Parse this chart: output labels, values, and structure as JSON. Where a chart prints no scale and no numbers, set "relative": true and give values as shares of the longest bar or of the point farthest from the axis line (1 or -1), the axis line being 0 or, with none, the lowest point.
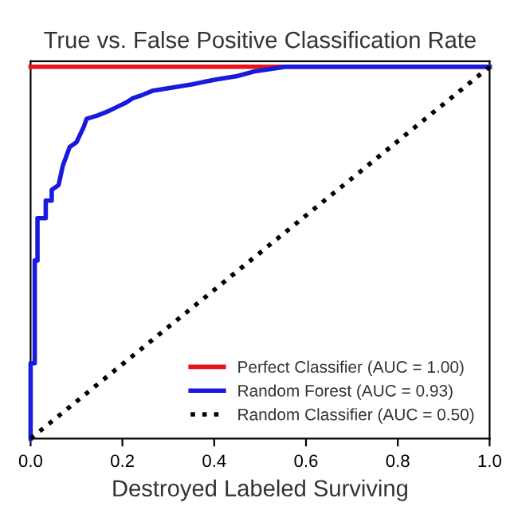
{
  "chart_data": {
    "type": "line",
    "title": "True vs. False Positive Classification Rate",
    "xlabel": "Destroyed Labeled Surviving",
    "xlim": [
      0,
      1
    ],
    "relative": true,
    "xticks": [
      {
        "value": 0,
        "label": "0.0"
      },
      0.2,
      0.4,
      0.6,
      0.8,
      {
        "value": 1,
        "label": "1.0"
      }
    ],
    "tick_labels": "x",
    "grid": false,
    "legend": "bottom right",
    "series": [
      {
        "name": "Perfect Classifier (AUC = 1.00)",
        "color": "#e8141c",
        "x": [
          0,
          1
        ],
        "values": [
          1,
          1
        ]
      },
      {
        "name": "Random Forest (AUC = 0.93)",
        "color": "#1a1adc",
        "x": [
          0,
          0,
          0.009,
          0.009,
          0.015,
          0.015,
          0.033,
          0.033,
          0.046,
          0.046,
          0.061,
          0.07,
          0.085,
          0.1,
          0.116,
          0.122,
          0.146,
          0.17,
          0.185,
          0.207,
          0.222,
          0.243,
          0.267,
          0.313,
          0.353,
          0.404,
          0.45,
          0.486,
          0.556,
          1.0
        ],
        "values": [
          0,
          0.203,
          0.203,
          0.479,
          0.479,
          0.593,
          0.593,
          0.64,
          0.64,
          0.669,
          0.682,
          0.733,
          0.784,
          0.797,
          0.839,
          0.86,
          0.869,
          0.881,
          0.89,
          0.903,
          0.915,
          0.924,
          0.936,
          0.945,
          0.953,
          0.966,
          0.975,
          0.987,
          1.0,
          1.0
        ]
      },
      {
        "name": "Random Classifier (AUC = 0.50)",
        "color": "#000000",
        "line_style": "dotted",
        "x": [
          0,
          1
        ],
        "values": [
          0,
          1
        ]
      }
    ]
  }
}
